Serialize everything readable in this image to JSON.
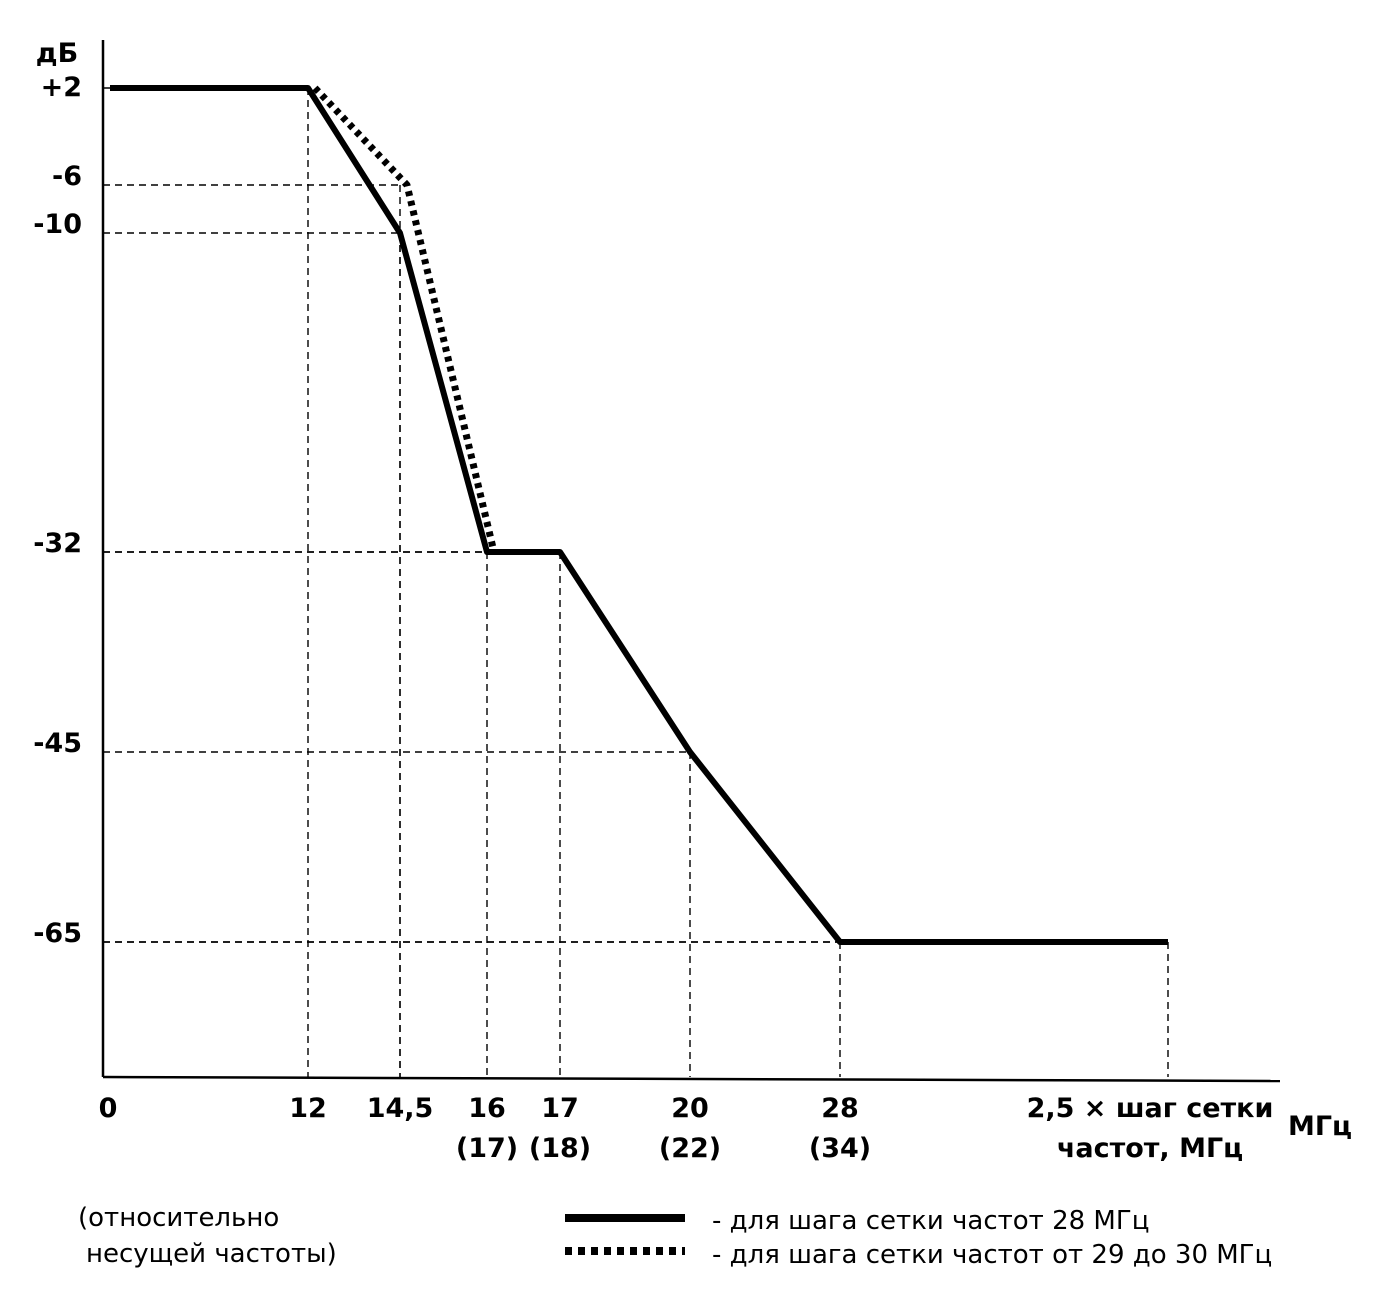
{
  "chart_data": {
    "type": "line",
    "ylabel": "дБ",
    "xunit": "МГц",
    "y_ticks": [
      {
        "value": 2,
        "label": "+2"
      },
      {
        "value": -6,
        "label": "-6"
      },
      {
        "value": -10,
        "label": "-10"
      },
      {
        "value": -32,
        "label": "-32"
      },
      {
        "value": -45,
        "label": "-45"
      },
      {
        "value": -65,
        "label": "-65"
      }
    ],
    "x_ticks": [
      {
        "key": "0",
        "label": "0",
        "sub": ""
      },
      {
        "key": "12",
        "label": "12",
        "sub": ""
      },
      {
        "key": "14.5",
        "label": "14,5",
        "sub": ""
      },
      {
        "key": "16",
        "label": "16",
        "sub": "(17)"
      },
      {
        "key": "17",
        "label": "17",
        "sub": "(18)"
      },
      {
        "key": "20",
        "label": "20",
        "sub": "(22)"
      },
      {
        "key": "28",
        "label": "28",
        "sub": "(34)"
      },
      {
        "key": "end",
        "label": "2,5 × шаг сетки",
        "sub": "частот, МГц"
      }
    ],
    "series": [
      {
        "name": "- для шага сетки частот 28 МГц",
        "style": "solid",
        "points": [
          [
            "0",
            2
          ],
          [
            "12",
            2
          ],
          [
            "14.5",
            -10
          ],
          [
            "16",
            -32
          ],
          [
            "17",
            -32
          ],
          [
            "20",
            -45
          ],
          [
            "28",
            -65
          ],
          [
            "end",
            -65
          ]
        ]
      },
      {
        "name": "- для шага сетки частот от 29 до 30 МГц",
        "style": "dotted",
        "points": [
          [
            "12",
            2
          ],
          [
            "14.5",
            -6
          ],
          [
            "16",
            -32
          ]
        ]
      }
    ],
    "guides": [
      {
        "x": "12",
        "y": 2
      },
      {
        "x": "14.5",
        "y": -6
      },
      {
        "x": "14.5",
        "y": -10
      },
      {
        "x": "16",
        "y": -32
      },
      {
        "x": "17",
        "y": -32
      },
      {
        "x": "20",
        "y": -45
      },
      {
        "x": "28",
        "y": -65
      },
      {
        "x": "end",
        "y": -65
      }
    ],
    "note": "(относительно несущей частоты)",
    "colors": {
      "line": "#000000",
      "background": "#ffffff"
    }
  },
  "legend": {
    "solid": "- для шага сетки частот 28 МГц",
    "dotted": "- для шага сетки частот от 29 до 30 МГц"
  },
  "note": {
    "line1": "(относительно",
    "line2": "несущей частоты)"
  }
}
